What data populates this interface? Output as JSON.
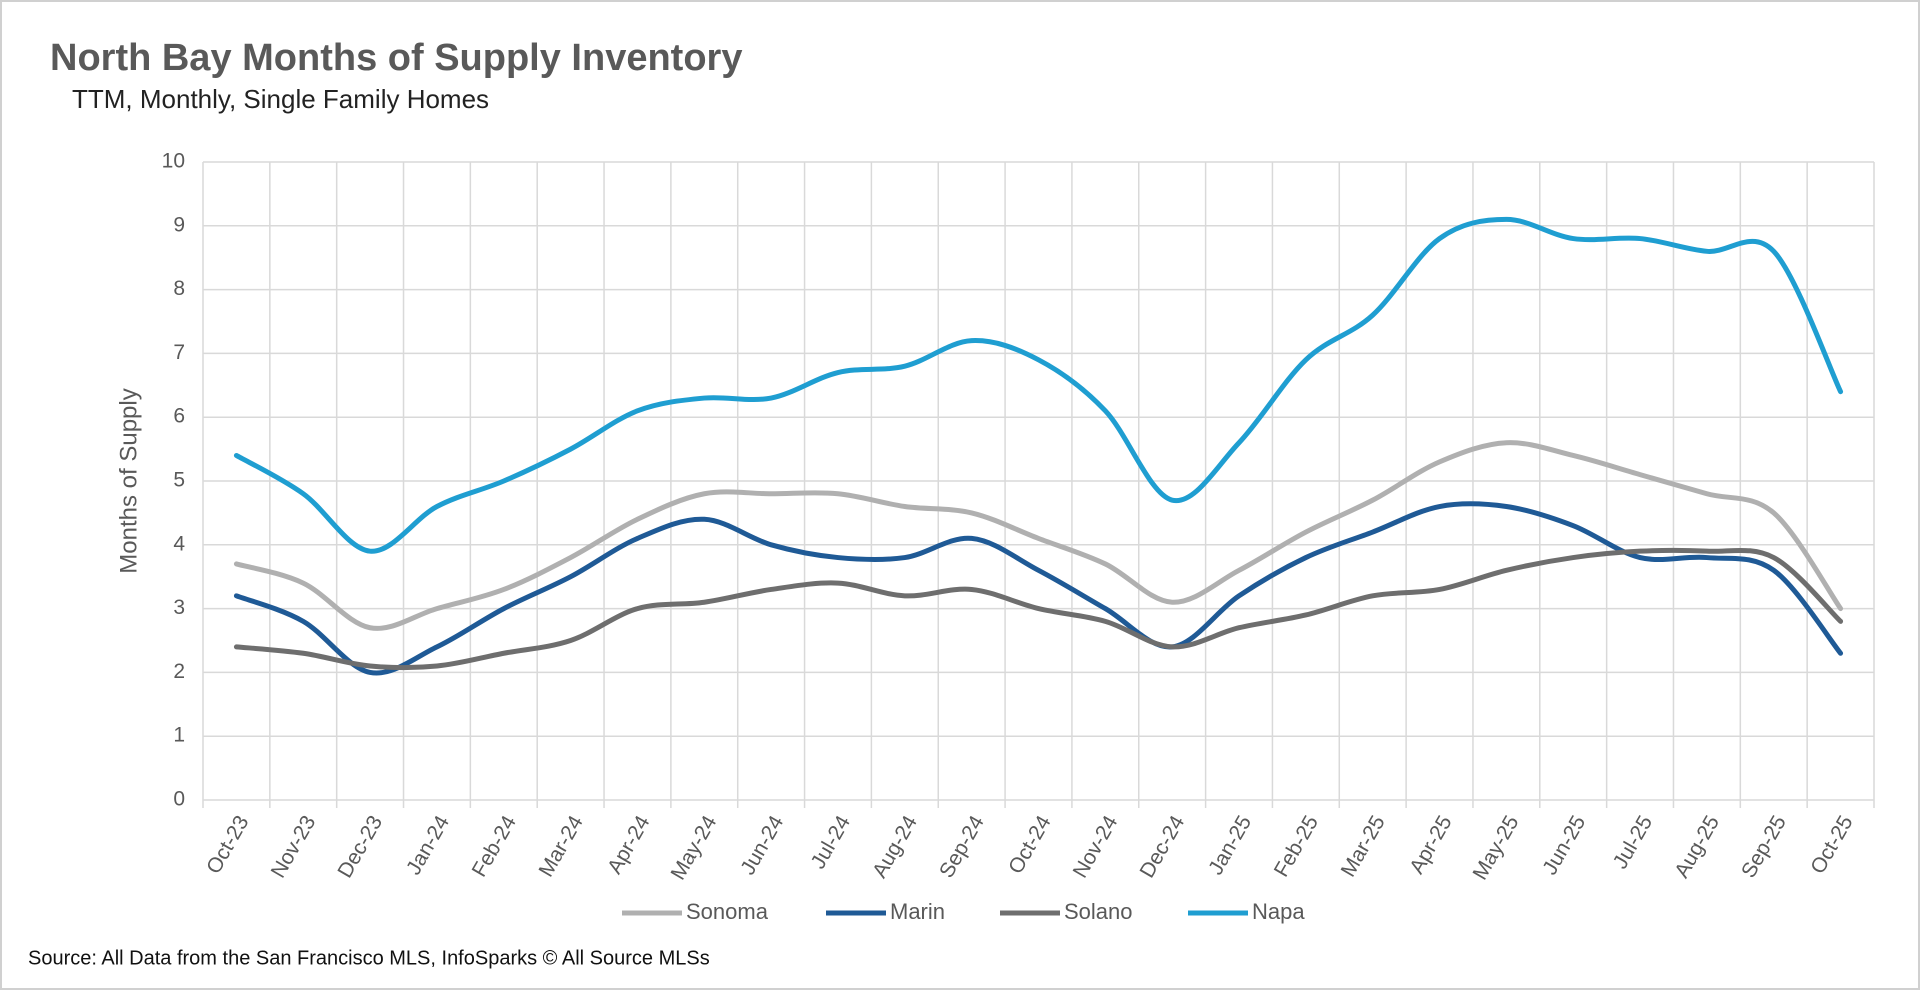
{
  "chart_data": {
    "type": "line",
    "title": "North Bay Months of Supply Inventory",
    "subtitle": "TTM, Monthly, Single Family Homes",
    "y_label": "Months of Supply",
    "source": "Source: All Data from the San Francisco MLS, InfoSparks © All Source MLSs",
    "categories": [
      "Oct-23",
      "Nov-23",
      "Dec-23",
      "Jan-24",
      "Feb-24",
      "Mar-24",
      "Apr-24",
      "May-24",
      "Jun-24",
      "Jul-24",
      "Aug-24",
      "Sep-24",
      "Oct-24",
      "Nov-24",
      "Dec-24",
      "Jan-25",
      "Feb-25",
      "Mar-25",
      "Apr-25",
      "May-25",
      "Jun-25",
      "Jul-25",
      "Aug-25",
      "Sep-25",
      "Oct-25"
    ],
    "series": [
      {
        "name": "Sonoma",
        "color": "#b0b0b0",
        "values": [
          3.7,
          3.4,
          2.7,
          3.0,
          3.3,
          3.8,
          4.4,
          4.8,
          4.8,
          4.8,
          4.6,
          4.5,
          4.1,
          3.7,
          3.1,
          3.6,
          4.2,
          4.7,
          5.3,
          5.6,
          5.4,
          5.1,
          4.8,
          4.5,
          3.0
        ]
      },
      {
        "name": "Marin",
        "color": "#1f5a96",
        "values": [
          3.2,
          2.8,
          2.0,
          2.4,
          3.0,
          3.5,
          4.1,
          4.4,
          4.0,
          3.8,
          3.8,
          4.1,
          3.6,
          3.0,
          2.4,
          3.2,
          3.8,
          4.2,
          4.6,
          4.6,
          4.3,
          3.8,
          3.8,
          3.6,
          2.3
        ]
      },
      {
        "name": "Solano",
        "color": "#6e6e6e",
        "values": [
          2.4,
          2.3,
          2.1,
          2.1,
          2.3,
          2.5,
          3.0,
          3.1,
          3.3,
          3.4,
          3.2,
          3.3,
          3.0,
          2.8,
          2.4,
          2.7,
          2.9,
          3.2,
          3.3,
          3.6,
          3.8,
          3.9,
          3.9,
          3.8,
          2.8
        ]
      },
      {
        "name": "Napa",
        "color": "#1f9ed1",
        "values": [
          5.4,
          4.8,
          3.9,
          4.6,
          5.0,
          5.5,
          6.1,
          6.3,
          6.3,
          6.7,
          6.8,
          7.2,
          6.9,
          6.1,
          4.7,
          5.6,
          6.9,
          7.6,
          8.8,
          9.1,
          8.8,
          8.8,
          8.6,
          8.6,
          6.4
        ]
      }
    ],
    "ylim": [
      0,
      10
    ],
    "yticks": [
      0,
      1,
      2,
      3,
      4,
      5,
      6,
      7,
      8,
      9,
      10
    ],
    "grid": true,
    "smooth": true,
    "legend": "bottom"
  }
}
